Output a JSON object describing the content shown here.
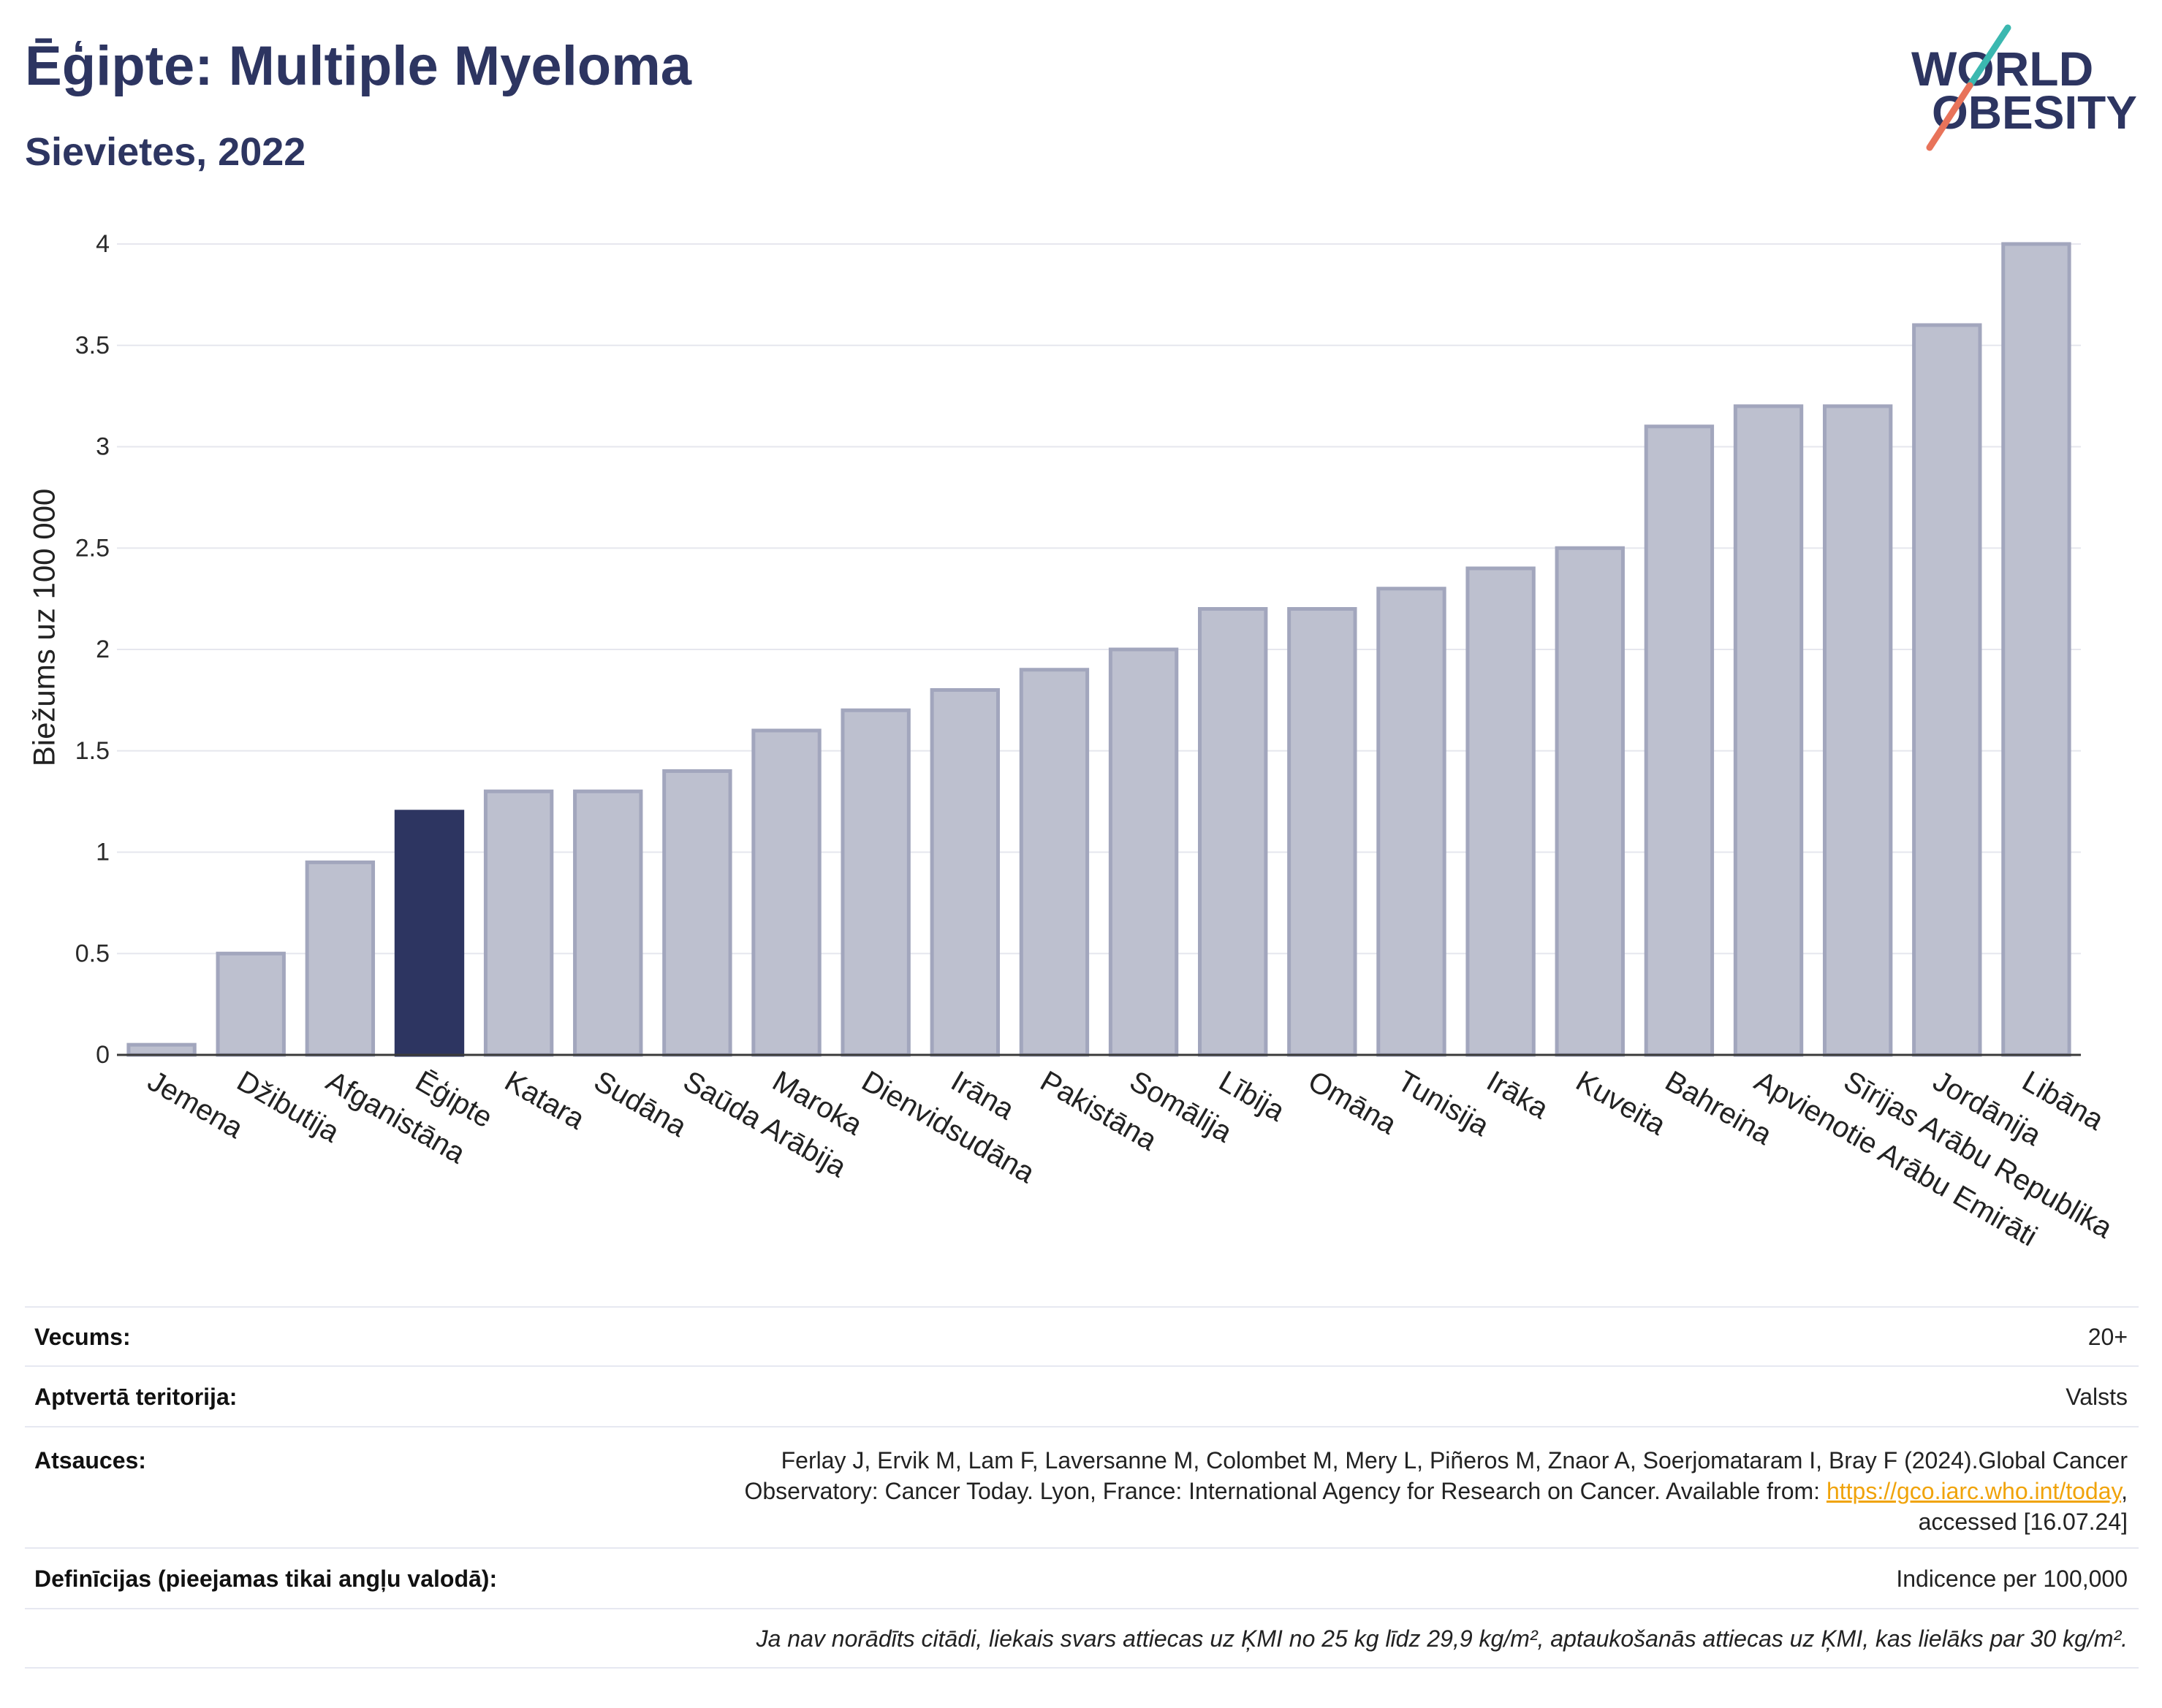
{
  "title": "Ēģipte: Multiple Myeloma",
  "subtitle": "Sievietes, 2022",
  "logo": {
    "line1": "WORLD",
    "line2": "OBESITY"
  },
  "colors": {
    "primary": "#2d3561",
    "bar": "#bdc0cf",
    "bar_outline": "#a2a6bd",
    "link": "#f0a30a",
    "logo_teal": "#3bb8b0",
    "logo_coral": "#e8735a"
  },
  "chart_data": {
    "type": "bar",
    "title": "Ēģipte: Multiple Myeloma",
    "subtitle": "Sievietes, 2022",
    "xlabel": "",
    "ylabel": "Biežums uz 100 000",
    "ylim": [
      0,
      4
    ],
    "yticks": [
      0,
      0.5,
      1,
      1.5,
      2,
      2.5,
      3,
      3.5,
      4
    ],
    "ytick_labels": [
      "0",
      "0.5",
      "1",
      "1.5",
      "2",
      "2.5",
      "3",
      "3.5",
      "4"
    ],
    "grid": true,
    "highlight": "Ēģipte",
    "categories": [
      "Jemena",
      "Džibutija",
      "Afganistāna",
      "Ēģipte",
      "Katara",
      "Sudāna",
      "Saūda Arābija",
      "Maroka",
      "Dienvidsudāna",
      "Irāna",
      "Pakistāna",
      "Somālija",
      "Lībija",
      "Omāna",
      "Tunisija",
      "Irāka",
      "Kuveita",
      "Bahreina",
      "Apvienotie Arābu Emirāti",
      "Sīrijas Arābu Republika",
      "Jordānija",
      "Libāna"
    ],
    "values": [
      0.05,
      0.5,
      0.95,
      1.2,
      1.3,
      1.3,
      1.4,
      1.6,
      1.7,
      1.8,
      1.9,
      2.0,
      2.2,
      2.2,
      2.3,
      2.4,
      2.5,
      3.1,
      3.2,
      3.2,
      3.6,
      4.0
    ]
  },
  "info": {
    "age": {
      "label": "Vecums:",
      "value": "20+"
    },
    "coverage": {
      "label": "Aptvertā teritorija:",
      "value": "Valsts"
    },
    "references": {
      "label": "Atsauces:",
      "line1": "Ferlay J, Ervik M, Lam F, Laversanne M, Colombet M, Mery L, Piñeros M, Znaor A, Soerjomataram I, Bray F (2024).Global Cancer",
      "line2": "Observatory: Cancer Today. Lyon, France: International Agency for Research on Cancer. Available from: ",
      "link": "https://gco.iarc.who.int/today",
      "line2_end": ",",
      "line3": "accessed [16.07.24]"
    },
    "definitions": {
      "label": "Definīcijas (pieejamas tikai angļu valodā):",
      "value": "Indicence per 100,000"
    },
    "note": "Ja nav norādīts citādi, liekais svars attiecas uz ĶMI no 25 kg līdz 29,9 kg/m², aptaukošanās attiecas uz ĶMI, kas lielāks par 30 kg/m²."
  }
}
